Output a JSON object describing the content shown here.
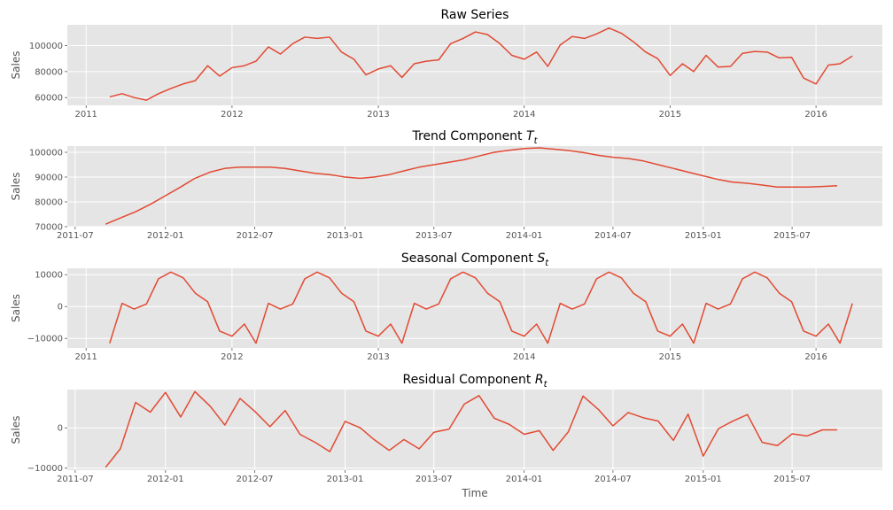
{
  "chart_data": [
    {
      "type": "line",
      "title": "Raw Series",
      "title_sub": "",
      "xlabel": "",
      "ylabel": "Sales",
      "xlim": [
        "2010-11-15",
        "2016-06-15"
      ],
      "ylim": [
        54000,
        116000
      ],
      "xticks": [
        {
          "value": "2011-01-01",
          "label": "2011"
        },
        {
          "value": "2012-01-01",
          "label": "2012"
        },
        {
          "value": "2013-01-01",
          "label": "2013"
        },
        {
          "value": "2014-01-01",
          "label": "2014"
        },
        {
          "value": "2015-01-01",
          "label": "2015"
        },
        {
          "value": "2016-01-01",
          "label": "2016"
        }
      ],
      "yticks": [
        {
          "value": 60000,
          "label": "60000"
        },
        {
          "value": 80000,
          "label": "80000"
        },
        {
          "value": 100000,
          "label": "100000"
        }
      ],
      "grid": true,
      "color": "#E24A33",
      "x": [
        "2011-03-01",
        "2011-04-01",
        "2011-05-01",
        "2011-06-01",
        "2011-07-01",
        "2011-08-01",
        "2011-09-01",
        "2011-10-01",
        "2011-11-01",
        "2011-12-01",
        "2012-01-01",
        "2012-02-01",
        "2012-03-01",
        "2012-04-01",
        "2012-05-01",
        "2012-06-01",
        "2012-07-01",
        "2012-08-01",
        "2012-09-01",
        "2012-10-01",
        "2012-11-01",
        "2012-12-01",
        "2013-01-01",
        "2013-02-01",
        "2013-03-01",
        "2013-04-01",
        "2013-05-01",
        "2013-06-01",
        "2013-07-01",
        "2013-08-01",
        "2013-09-01",
        "2013-10-01",
        "2013-11-01",
        "2013-12-01",
        "2014-01-01",
        "2014-02-01",
        "2014-03-01",
        "2014-04-01",
        "2014-05-01",
        "2014-06-01",
        "2014-07-01",
        "2014-08-01",
        "2014-09-01",
        "2014-10-01",
        "2014-11-01",
        "2014-12-01",
        "2015-01-01",
        "2015-02-01",
        "2015-03-01",
        "2015-04-01",
        "2015-05-01",
        "2015-06-01",
        "2015-07-01",
        "2015-08-01",
        "2015-09-01",
        "2015-10-01",
        "2015-11-01",
        "2015-12-01",
        "2016-01-01",
        "2016-02-01",
        "2016-03-01",
        "2016-04-01"
      ],
      "values": [
        60500,
        63000,
        60000,
        58000,
        63000,
        67000,
        70500,
        73000,
        84500,
        76500,
        83000,
        84500,
        88000,
        99000,
        93500,
        101500,
        106500,
        105500,
        106500,
        95000,
        89500,
        77500,
        82000,
        84500,
        75500,
        86000,
        88000,
        89000,
        101500,
        105500,
        110500,
        108500,
        101500,
        92500,
        89500,
        95000,
        84000,
        100500,
        107000,
        105500,
        109000,
        113500,
        109500,
        103000,
        95000,
        90000,
        77000,
        86000,
        80000,
        92500,
        83500,
        84000,
        94000,
        95500,
        95000,
        90500,
        91000,
        75000,
        70500,
        85000,
        86000,
        92000
      ]
    },
    {
      "type": "line",
      "title": "Trend Component ",
      "title_sub": "t",
      "title_var": "T",
      "xlabel": "",
      "ylabel": "Sales",
      "xlim": [
        "2011-06-15",
        "2016-01-01"
      ],
      "ylim": [
        70000,
        102500
      ],
      "xticks": [
        {
          "value": "2011-07-01",
          "label": "2011-07"
        },
        {
          "value": "2012-01-01",
          "label": "2012-01"
        },
        {
          "value": "2012-07-01",
          "label": "2012-07"
        },
        {
          "value": "2013-01-01",
          "label": "2013-01"
        },
        {
          "value": "2013-07-01",
          "label": "2013-07"
        },
        {
          "value": "2014-01-01",
          "label": "2014-01"
        },
        {
          "value": "2014-07-01",
          "label": "2014-07"
        },
        {
          "value": "2015-01-01",
          "label": "2015-01"
        },
        {
          "value": "2015-07-01",
          "label": "2015-07"
        }
      ],
      "yticks": [
        {
          "value": 70000,
          "label": "70000"
        },
        {
          "value": 80000,
          "label": "80000"
        },
        {
          "value": 90000,
          "label": "90000"
        },
        {
          "value": 100000,
          "label": "100000"
        }
      ],
      "grid": true,
      "color": "#E24A33",
      "x": [
        "2011-09-01",
        "2011-10-01",
        "2011-11-01",
        "2011-12-01",
        "2012-01-01",
        "2012-02-01",
        "2012-03-01",
        "2012-04-01",
        "2012-05-01",
        "2012-06-01",
        "2012-07-01",
        "2012-08-01",
        "2012-09-01",
        "2012-10-01",
        "2012-11-01",
        "2012-12-01",
        "2013-01-01",
        "2013-02-01",
        "2013-03-01",
        "2013-04-01",
        "2013-05-01",
        "2013-06-01",
        "2013-07-01",
        "2013-08-01",
        "2013-09-01",
        "2013-10-01",
        "2013-11-01",
        "2013-12-01",
        "2014-01-01",
        "2014-02-01",
        "2014-03-01",
        "2014-04-01",
        "2014-05-01",
        "2014-06-01",
        "2014-07-01",
        "2014-08-01",
        "2014-09-01",
        "2014-10-01",
        "2014-11-01",
        "2014-12-01",
        "2015-01-01",
        "2015-02-01",
        "2015-03-01",
        "2015-04-01",
        "2015-05-01",
        "2015-06-01",
        "2015-07-01",
        "2015-08-01",
        "2015-09-01",
        "2015-10-01"
      ],
      "values": [
        71000,
        73500,
        76000,
        79000,
        82500,
        86000,
        89500,
        92000,
        93500,
        94000,
        94000,
        94000,
        93500,
        92500,
        91500,
        91000,
        90000,
        89500,
        90000,
        91000,
        92500,
        94000,
        95000,
        96000,
        97000,
        98500,
        100000,
        100800,
        101500,
        101800,
        101300,
        100700,
        99900,
        98800,
        98000,
        97500,
        96500,
        95000,
        93500,
        92000,
        90500,
        89000,
        88000,
        87500,
        86800,
        86000,
        86000,
        86000,
        86200,
        86500
      ]
    },
    {
      "type": "line",
      "title": "Seasonal Component ",
      "title_sub": "t",
      "title_var": "S",
      "xlabel": "",
      "ylabel": "Sales",
      "xlim": [
        "2010-11-15",
        "2016-06-15"
      ],
      "ylim": [
        -13000,
        12000
      ],
      "xticks": [
        {
          "value": "2011-01-01",
          "label": "2011"
        },
        {
          "value": "2012-01-01",
          "label": "2012"
        },
        {
          "value": "2013-01-01",
          "label": "2013"
        },
        {
          "value": "2014-01-01",
          "label": "2014"
        },
        {
          "value": "2015-01-01",
          "label": "2015"
        },
        {
          "value": "2016-01-01",
          "label": "2016"
        }
      ],
      "yticks": [
        {
          "value": -10000,
          "label": "−10000"
        },
        {
          "value": 0,
          "label": "0"
        },
        {
          "value": 10000,
          "label": "10000"
        }
      ],
      "grid": true,
      "color": "#E24A33",
      "x": [
        "2011-03-01",
        "2011-04-01",
        "2011-05-01",
        "2011-06-01",
        "2011-07-01",
        "2011-08-01",
        "2011-09-01",
        "2011-10-01",
        "2011-11-01",
        "2011-12-01",
        "2012-01-01",
        "2012-02-01",
        "2012-03-01",
        "2012-04-01",
        "2012-05-01",
        "2012-06-01",
        "2012-07-01",
        "2012-08-01",
        "2012-09-01",
        "2012-10-01",
        "2012-11-01",
        "2012-12-01",
        "2013-01-01",
        "2013-02-01",
        "2013-03-01",
        "2013-04-01",
        "2013-05-01",
        "2013-06-01",
        "2013-07-01",
        "2013-08-01",
        "2013-09-01",
        "2013-10-01",
        "2013-11-01",
        "2013-12-01",
        "2014-01-01",
        "2014-02-01",
        "2014-03-01",
        "2014-04-01",
        "2014-05-01",
        "2014-06-01",
        "2014-07-01",
        "2014-08-01",
        "2014-09-01",
        "2014-10-01",
        "2014-11-01",
        "2014-12-01",
        "2015-01-01",
        "2015-02-01",
        "2015-03-01",
        "2015-04-01",
        "2015-05-01",
        "2015-06-01",
        "2015-07-01",
        "2015-08-01",
        "2015-09-01",
        "2015-10-01",
        "2015-11-01",
        "2015-12-01",
        "2016-01-01",
        "2016-02-01",
        "2016-03-01",
        "2016-04-01"
      ],
      "values": [
        -11500,
        1000,
        -800,
        800,
        8700,
        10800,
        9000,
        4200,
        1500,
        -7700,
        -9300,
        -5500,
        -11500,
        1000,
        -800,
        800,
        8700,
        10800,
        9000,
        4200,
        1500,
        -7700,
        -9300,
        -5500,
        -11500,
        1000,
        -800,
        800,
        8700,
        10800,
        9000,
        4200,
        1500,
        -7700,
        -9300,
        -5500,
        -11500,
        1000,
        -800,
        800,
        8700,
        10800,
        9000,
        4200,
        1500,
        -7700,
        -9300,
        -5500,
        -11500,
        1000,
        -800,
        800,
        8700,
        10800,
        9000,
        4200,
        1500,
        -7700,
        -9300,
        -5500,
        -11500,
        1000
      ]
    },
    {
      "type": "line",
      "title": "Residual Component ",
      "title_sub": "t",
      "title_var": "R",
      "xlabel": "Time",
      "ylabel": "Sales",
      "xlim": [
        "2011-06-15",
        "2016-01-01"
      ],
      "ylim": [
        -10500,
        9500
      ],
      "xticks": [
        {
          "value": "2011-07-01",
          "label": "2011-07"
        },
        {
          "value": "2012-01-01",
          "label": "2012-01"
        },
        {
          "value": "2012-07-01",
          "label": "2012-07"
        },
        {
          "value": "2013-01-01",
          "label": "2013-01"
        },
        {
          "value": "2013-07-01",
          "label": "2013-07"
        },
        {
          "value": "2014-01-01",
          "label": "2014-01"
        },
        {
          "value": "2014-07-01",
          "label": "2014-07"
        },
        {
          "value": "2015-01-01",
          "label": "2015-01"
        },
        {
          "value": "2015-07-01",
          "label": "2015-07"
        }
      ],
      "yticks": [
        {
          "value": -10000,
          "label": "−10000"
        },
        {
          "value": 0,
          "label": "0"
        }
      ],
      "grid": true,
      "color": "#E24A33",
      "x": [
        "2011-09-01",
        "2011-10-01",
        "2011-11-01",
        "2011-12-01",
        "2012-01-01",
        "2012-02-01",
        "2012-03-01",
        "2012-04-01",
        "2012-05-01",
        "2012-06-01",
        "2012-07-01",
        "2012-08-01",
        "2012-09-01",
        "2012-10-01",
        "2012-11-01",
        "2012-12-01",
        "2013-01-01",
        "2013-02-01",
        "2013-03-01",
        "2013-04-01",
        "2013-05-01",
        "2013-06-01",
        "2013-07-01",
        "2013-08-01",
        "2013-09-01",
        "2013-10-01",
        "2013-11-01",
        "2013-12-01",
        "2014-01-01",
        "2014-02-01",
        "2014-03-01",
        "2014-04-01",
        "2014-05-01",
        "2014-06-01",
        "2014-07-01",
        "2014-08-01",
        "2014-09-01",
        "2014-10-01",
        "2014-11-01",
        "2014-12-01",
        "2015-01-01",
        "2015-02-01",
        "2015-03-01",
        "2015-04-01",
        "2015-05-01",
        "2015-06-01",
        "2015-07-01",
        "2015-08-01",
        "2015-09-01",
        "2015-10-01"
      ],
      "values": [
        -9800,
        -5200,
        6300,
        3900,
        8800,
        2700,
        9000,
        5400,
        700,
        7300,
        4100,
        300,
        4300,
        -1600,
        -3600,
        -5900,
        1600,
        0,
        -2900,
        -5600,
        -2900,
        -5200,
        -1100,
        -300,
        5900,
        8000,
        2400,
        900,
        -1600,
        -700,
        -5600,
        -1000,
        7900,
        4600,
        500,
        3800,
        2500,
        1700,
        -3100,
        3400,
        -7000,
        -200,
        1600,
        3300,
        -3600,
        -4400,
        -1500,
        -2000,
        -500,
        -500
      ]
    }
  ]
}
